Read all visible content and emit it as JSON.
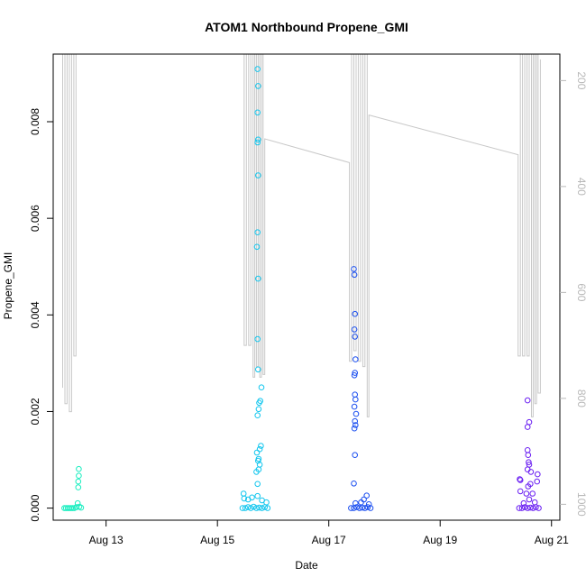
{
  "chart_data": {
    "type": "scatter",
    "title": "ATOM1 Northbound Propene_GMI",
    "xlabel": "Date",
    "ylabel": "Propene_GMI",
    "x_unit": "date (August)",
    "xlim": [
      "2021-08-12.05",
      "2021-08-21.15"
    ],
    "ylim": [
      -0.00025,
      0.0094
    ],
    "x_ticks": [
      {
        "value": "2021-08-13",
        "label": "Aug 13"
      },
      {
        "value": "2021-08-15",
        "label": "Aug 15"
      },
      {
        "value": "2021-08-17",
        "label": "Aug 17"
      },
      {
        "value": "2021-08-19",
        "label": "Aug 19"
      },
      {
        "value": "2021-08-21",
        "label": "Aug 21"
      }
    ],
    "y_ticks": [
      {
        "value": 0.0,
        "label": "0.000"
      },
      {
        "value": 0.002,
        "label": "0.002"
      },
      {
        "value": 0.004,
        "label": "0.004"
      },
      {
        "value": 0.006,
        "label": "0.006"
      },
      {
        "value": 0.008,
        "label": "0.008"
      }
    ],
    "right_axis": {
      "reversed": true,
      "ylim": [
        1030,
        150
      ],
      "ticks": [
        {
          "value": 200,
          "label": "200"
        },
        {
          "value": 400,
          "label": "400"
        },
        {
          "value": 600,
          "label": "600"
        },
        {
          "value": 800,
          "label": "800"
        },
        {
          "value": 1000,
          "label": "1000"
        }
      ]
    },
    "grid": false,
    "legend": "none",
    "series": [
      {
        "color": "#1aeec0",
        "points": [
          {
            "x": "2021-08-12.25",
            "y": 0.0
          },
          {
            "x": "2021-08-12.28",
            "y": 0.0
          },
          {
            "x": "2021-08-12.31",
            "y": 0.0
          },
          {
            "x": "2021-08-12.34",
            "y": 0.0
          },
          {
            "x": "2021-08-12.37",
            "y": 0.0
          },
          {
            "x": "2021-08-12.40",
            "y": 0.0
          },
          {
            "x": "2021-08-12.43",
            "y": 0.0
          },
          {
            "x": "2021-08-12.47",
            "y": 2e-05
          },
          {
            "x": "2021-08-12.52",
            "y": 3e-05
          },
          {
            "x": "2021-08-12.55",
            "y": 1e-05
          },
          {
            "x": "2021-08-12.49",
            "y": 0.0001
          },
          {
            "x": "2021-08-12.50",
            "y": 0.00043
          },
          {
            "x": "2021-08-12.50",
            "y": 0.00055
          },
          {
            "x": "2021-08-12.51",
            "y": 0.00067
          },
          {
            "x": "2021-08-12.51",
            "y": 0.00081
          }
        ]
      },
      {
        "color": "#12c6ee",
        "points": [
          {
            "x": "2021-08-15.45",
            "y": 0.0
          },
          {
            "x": "2021-08-15.50",
            "y": 0.0
          },
          {
            "x": "2021-08-15.55",
            "y": 2e-05
          },
          {
            "x": "2021-08-15.60",
            "y": 0.0
          },
          {
            "x": "2021-08-15.65",
            "y": 3e-05
          },
          {
            "x": "2021-08-15.70",
            "y": 0.0
          },
          {
            "x": "2021-08-15.75",
            "y": 1e-05
          },
          {
            "x": "2021-08-15.80",
            "y": 0.0
          },
          {
            "x": "2021-08-15.85",
            "y": 2e-05
          },
          {
            "x": "2021-08-15.90",
            "y": 0.0
          },
          {
            "x": "2021-08-15.48",
            "y": 0.0002
          },
          {
            "x": "2021-08-15.47",
            "y": 0.0003
          },
          {
            "x": "2021-08-15.55",
            "y": 0.00018
          },
          {
            "x": "2021-08-15.62",
            "y": 0.00022
          },
          {
            "x": "2021-08-15.72",
            "y": 0.00025
          },
          {
            "x": "2021-08-15.80",
            "y": 0.00016
          },
          {
            "x": "2021-08-15.88",
            "y": 0.00012
          },
          {
            "x": "2021-08-15.72",
            "y": 0.0005
          },
          {
            "x": "2021-08-15.70",
            "y": 0.00075
          },
          {
            "x": "2021-08-15.74",
            "y": 0.0008
          },
          {
            "x": "2021-08-15.76",
            "y": 0.0009
          },
          {
            "x": "2021-08-15.73",
            "y": 0.00098
          },
          {
            "x": "2021-08-15.71",
            "y": 0.00115
          },
          {
            "x": "2021-08-15.76",
            "y": 0.00122
          },
          {
            "x": "2021-08-15.78",
            "y": 0.00129
          },
          {
            "x": "2021-08-15.74",
            "y": 0.00102
          },
          {
            "x": "2021-08-15.72",
            "y": 0.00192
          },
          {
            "x": "2021-08-15.74",
            "y": 0.00205
          },
          {
            "x": "2021-08-15.75",
            "y": 0.00218
          },
          {
            "x": "2021-08-15.77",
            "y": 0.00222
          },
          {
            "x": "2021-08-15.79",
            "y": 0.0025
          },
          {
            "x": "2021-08-15.73",
            "y": 0.00287
          },
          {
            "x": "2021-08-15.72",
            "y": 0.0035
          },
          {
            "x": "2021-08-15.73",
            "y": 0.00475
          },
          {
            "x": "2021-08-15.71",
            "y": 0.00541
          },
          {
            "x": "2021-08-15.72",
            "y": 0.00571
          },
          {
            "x": "2021-08-15.73",
            "y": 0.00689
          },
          {
            "x": "2021-08-15.72",
            "y": 0.00757
          },
          {
            "x": "2021-08-15.73",
            "y": 0.00763
          },
          {
            "x": "2021-08-15.72",
            "y": 0.00819
          },
          {
            "x": "2021-08-15.73",
            "y": 0.00874
          },
          {
            "x": "2021-08-15.72",
            "y": 0.00909
          }
        ]
      },
      {
        "color": "#1a4ef0",
        "points": [
          {
            "x": "2021-08-17.40",
            "y": 0.0
          },
          {
            "x": "2021-08-17.45",
            "y": 0.0
          },
          {
            "x": "2021-08-17.50",
            "y": 2e-05
          },
          {
            "x": "2021-08-17.55",
            "y": 0.0
          },
          {
            "x": "2021-08-17.60",
            "y": 1e-05
          },
          {
            "x": "2021-08-17.65",
            "y": 0.0
          },
          {
            "x": "2021-08-17.70",
            "y": 2e-05
          },
          {
            "x": "2021-08-17.75",
            "y": 0.0
          },
          {
            "x": "2021-08-17.48",
            "y": 0.0001
          },
          {
            "x": "2021-08-17.58",
            "y": 0.00012
          },
          {
            "x": "2021-08-17.63",
            "y": 0.00018
          },
          {
            "x": "2021-08-17.68",
            "y": 0.00026
          },
          {
            "x": "2021-08-17.72",
            "y": 8e-05
          },
          {
            "x": "2021-08-17.45",
            "y": 0.00051
          },
          {
            "x": "2021-08-17.47",
            "y": 0.0011
          },
          {
            "x": "2021-08-17.46",
            "y": 0.00165
          },
          {
            "x": "2021-08-17.48",
            "y": 0.00172
          },
          {
            "x": "2021-08-17.47",
            "y": 0.0018
          },
          {
            "x": "2021-08-17.49",
            "y": 0.00195
          },
          {
            "x": "2021-08-17.46",
            "y": 0.0021
          },
          {
            "x": "2021-08-17.48",
            "y": 0.00225
          },
          {
            "x": "2021-08-17.47",
            "y": 0.00235
          },
          {
            "x": "2021-08-17.46",
            "y": 0.00275
          },
          {
            "x": "2021-08-17.47",
            "y": 0.0028
          },
          {
            "x": "2021-08-17.48",
            "y": 0.00308
          },
          {
            "x": "2021-08-17.47",
            "y": 0.00355
          },
          {
            "x": "2021-08-17.46",
            "y": 0.0037
          },
          {
            "x": "2021-08-17.47",
            "y": 0.00402
          },
          {
            "x": "2021-08-17.46",
            "y": 0.00483
          },
          {
            "x": "2021-08-17.45",
            "y": 0.00495
          }
        ]
      },
      {
        "color": "#6a1ef2",
        "points": [
          {
            "x": "2021-08-20.42",
            "y": 0.0
          },
          {
            "x": "2021-08-20.47",
            "y": 0.0
          },
          {
            "x": "2021-08-20.52",
            "y": 2e-05
          },
          {
            "x": "2021-08-20.57",
            "y": 0.0
          },
          {
            "x": "2021-08-20.62",
            "y": 1e-05
          },
          {
            "x": "2021-08-20.67",
            "y": 0.0
          },
          {
            "x": "2021-08-20.72",
            "y": 2e-05
          },
          {
            "x": "2021-08-20.77",
            "y": 0.0
          },
          {
            "x": "2021-08-20.50",
            "y": 0.0001
          },
          {
            "x": "2021-08-20.60",
            "y": 0.00018
          },
          {
            "x": "2021-08-20.70",
            "y": 0.00012
          },
          {
            "x": "2021-08-20.44",
            "y": 0.00035
          },
          {
            "x": "2021-08-20.43",
            "y": 0.0006
          },
          {
            "x": "2021-08-20.44",
            "y": 0.00058
          },
          {
            "x": "2021-08-20.55",
            "y": 0.0003
          },
          {
            "x": "2021-08-20.58",
            "y": 0.00045
          },
          {
            "x": "2021-08-20.62",
            "y": 0.0005
          },
          {
            "x": "2021-08-20.66",
            "y": 0.0003
          },
          {
            "x": "2021-08-20.74",
            "y": 0.00055
          },
          {
            "x": "2021-08-20.75",
            "y": 0.0007
          },
          {
            "x": "2021-08-20.57",
            "y": 0.0008
          },
          {
            "x": "2021-08-20.59",
            "y": 0.00095
          },
          {
            "x": "2021-08-20.58",
            "y": 0.0011
          },
          {
            "x": "2021-08-20.57",
            "y": 0.0012
          },
          {
            "x": "2021-08-20.60",
            "y": 0.0009
          },
          {
            "x": "2021-08-20.63",
            "y": 0.00075
          },
          {
            "x": "2021-08-20.57",
            "y": 0.00168
          },
          {
            "x": "2021-08-20.60",
            "y": 0.00178
          },
          {
            "x": "2021-08-20.57",
            "y": 0.00223
          }
        ]
      }
    ],
    "gray_trace": {
      "color": "#c8c8c8",
      "axis": "right",
      "points": [
        {
          "x": "2021-08-12.22",
          "y": 780
        },
        {
          "x": "2021-08-12.22",
          "y": 150
        },
        {
          "x": "2021-08-12.26",
          "y": 150
        },
        {
          "x": "2021-08-12.26",
          "y": 810
        },
        {
          "x": "2021-08-12.30",
          "y": 810
        },
        {
          "x": "2021-08-12.30",
          "y": 150
        },
        {
          "x": "2021-08-12.34",
          "y": 150
        },
        {
          "x": "2021-08-12.34",
          "y": 825
        },
        {
          "x": "2021-08-12.38",
          "y": 825
        },
        {
          "x": "2021-08-12.38",
          "y": 150
        },
        {
          "x": "2021-08-12.42",
          "y": 150
        },
        {
          "x": "2021-08-12.42",
          "y": 720
        },
        {
          "x": "2021-08-12.46",
          "y": 720
        },
        {
          "x": "2021-08-12.46",
          "y": 150
        },
        {
          "x": "2021-08-15.48",
          "y": 150
        },
        {
          "x": "2021-08-15.48",
          "y": 700
        },
        {
          "x": "2021-08-15.52",
          "y": 700
        },
        {
          "x": "2021-08-15.52",
          "y": 150
        },
        {
          "x": "2021-08-15.56",
          "y": 150
        },
        {
          "x": "2021-08-15.56",
          "y": 700
        },
        {
          "x": "2021-08-15.60",
          "y": 700
        },
        {
          "x": "2021-08-15.60",
          "y": 150
        },
        {
          "x": "2021-08-15.64",
          "y": 150
        },
        {
          "x": "2021-08-15.64",
          "y": 760
        },
        {
          "x": "2021-08-15.67",
          "y": 760
        },
        {
          "x": "2021-08-15.67",
          "y": 150
        },
        {
          "x": "2021-08-15.70",
          "y": 150
        },
        {
          "x": "2021-08-15.70",
          "y": 740
        },
        {
          "x": "2021-08-15.73",
          "y": 740
        },
        {
          "x": "2021-08-15.73",
          "y": 150
        },
        {
          "x": "2021-08-15.76",
          "y": 150
        },
        {
          "x": "2021-08-15.76",
          "y": 760
        },
        {
          "x": "2021-08-15.79",
          "y": 760
        },
        {
          "x": "2021-08-15.79",
          "y": 150
        },
        {
          "x": "2021-08-15.82",
          "y": 150
        },
        {
          "x": "2021-08-15.82",
          "y": 755
        },
        {
          "x": "2021-08-15.85",
          "y": 755
        },
        {
          "x": "2021-08-15.85",
          "y": 310
        },
        {
          "x": "2021-08-17.37",
          "y": 355
        },
        {
          "x": "2021-08-17.37",
          "y": 730
        },
        {
          "x": "2021-08-17.41",
          "y": 730
        },
        {
          "x": "2021-08-17.41",
          "y": 150
        },
        {
          "x": "2021-08-17.45",
          "y": 150
        },
        {
          "x": "2021-08-17.45",
          "y": 710
        },
        {
          "x": "2021-08-17.49",
          "y": 710
        },
        {
          "x": "2021-08-17.49",
          "y": 150
        },
        {
          "x": "2021-08-17.53",
          "y": 150
        },
        {
          "x": "2021-08-17.53",
          "y": 730
        },
        {
          "x": "2021-08-17.57",
          "y": 730
        },
        {
          "x": "2021-08-17.57",
          "y": 150
        },
        {
          "x": "2021-08-17.61",
          "y": 150
        },
        {
          "x": "2021-08-17.61",
          "y": 740
        },
        {
          "x": "2021-08-17.65",
          "y": 740
        },
        {
          "x": "2021-08-17.65",
          "y": 150
        },
        {
          "x": "2021-08-17.69",
          "y": 150
        },
        {
          "x": "2021-08-17.69",
          "y": 835
        },
        {
          "x": "2021-08-17.72",
          "y": 835
        },
        {
          "x": "2021-08-17.72",
          "y": 265
        },
        {
          "x": "2021-08-20.40",
          "y": 340
        },
        {
          "x": "2021-08-20.40",
          "y": 720
        },
        {
          "x": "2021-08-20.44",
          "y": 720
        },
        {
          "x": "2021-08-20.44",
          "y": 150
        },
        {
          "x": "2021-08-20.48",
          "y": 150
        },
        {
          "x": "2021-08-20.48",
          "y": 720
        },
        {
          "x": "2021-08-20.52",
          "y": 720
        },
        {
          "x": "2021-08-20.52",
          "y": 150
        },
        {
          "x": "2021-08-20.56",
          "y": 150
        },
        {
          "x": "2021-08-20.56",
          "y": 720
        },
        {
          "x": "2021-08-20.60",
          "y": 720
        },
        {
          "x": "2021-08-20.60",
          "y": 150
        },
        {
          "x": "2021-08-20.64",
          "y": 150
        },
        {
          "x": "2021-08-20.64",
          "y": 835
        },
        {
          "x": "2021-08-20.67",
          "y": 835
        },
        {
          "x": "2021-08-20.67",
          "y": 150
        },
        {
          "x": "2021-08-20.70",
          "y": 150
        },
        {
          "x": "2021-08-20.70",
          "y": 810
        },
        {
          "x": "2021-08-20.73",
          "y": 810
        },
        {
          "x": "2021-08-20.73",
          "y": 150
        },
        {
          "x": "2021-08-20.76",
          "y": 150
        },
        {
          "x": "2021-08-20.76",
          "y": 790
        },
        {
          "x": "2021-08-20.80",
          "y": 790
        },
        {
          "x": "2021-08-20.80",
          "y": 160
        }
      ]
    }
  }
}
